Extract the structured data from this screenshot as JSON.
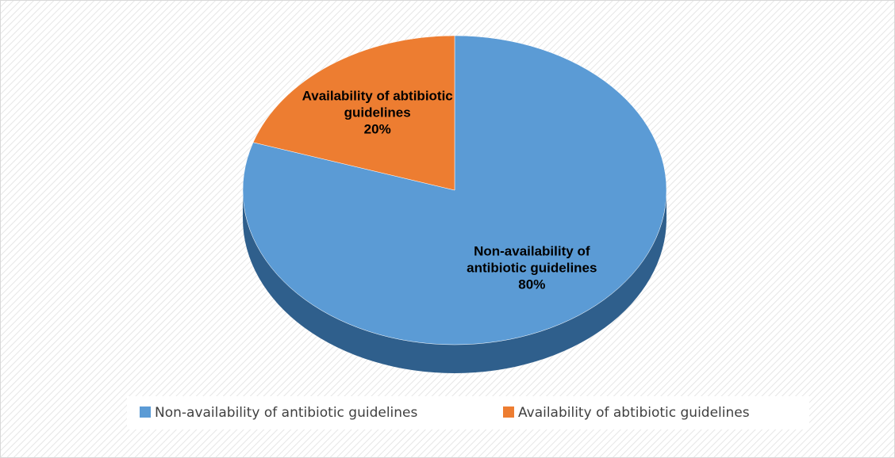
{
  "chart_data": {
    "type": "pie",
    "categories": [
      "Non-availability of antibiotic guidelines",
      "Availability of abtibiotic guidelines"
    ],
    "values": [
      80,
      20
    ],
    "value_labels": [
      "80%",
      "20%"
    ],
    "colors": [
      "#5b9bd5",
      "#ed7d31"
    ],
    "legend": "bottom"
  }
}
